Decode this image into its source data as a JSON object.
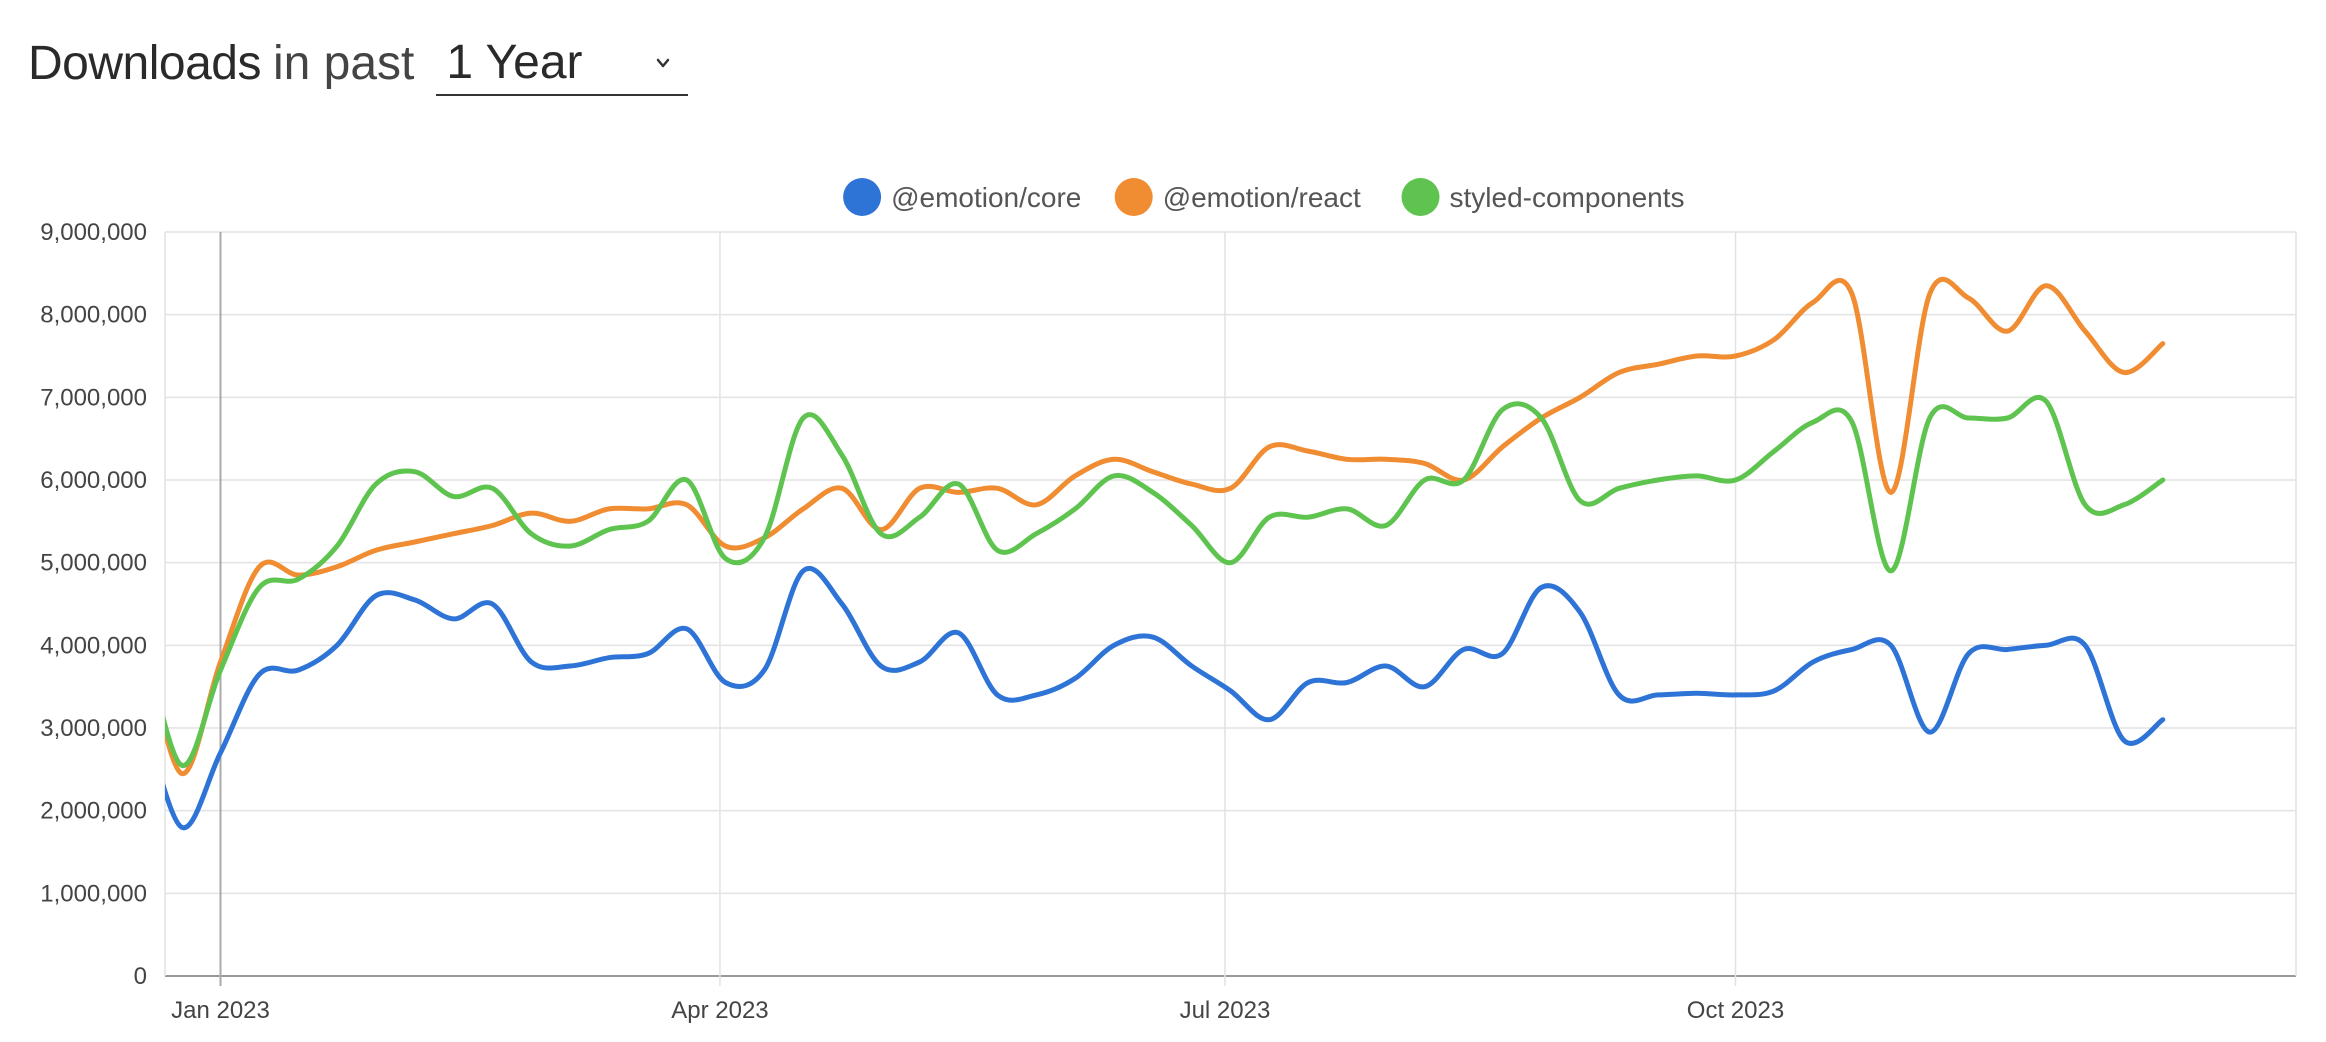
{
  "header": {
    "title": "Downloads",
    "subtitle": "in past",
    "range_value": "1 Year"
  },
  "chart_data": {
    "type": "line",
    "ylim": [
      0,
      9000000
    ],
    "y_ticks": [
      {
        "value": 0,
        "label": "0"
      },
      {
        "value": 1000000,
        "label": "1,000,000"
      },
      {
        "value": 2000000,
        "label": "2,000,000"
      },
      {
        "value": 3000000,
        "label": "3,000,000"
      },
      {
        "value": 4000000,
        "label": "4,000,000"
      },
      {
        "value": 5000000,
        "label": "5,000,000"
      },
      {
        "value": 6000000,
        "label": "6,000,000"
      },
      {
        "value": 7000000,
        "label": "7,000,000"
      },
      {
        "value": 8000000,
        "label": "8,000,000"
      },
      {
        "value": 9000000,
        "label": "9,000,000"
      }
    ],
    "x_range": [
      "2022-12-22",
      "2024-01-10"
    ],
    "x_ticks": [
      {
        "date": "2023-01-01",
        "label": "Jan 2023"
      },
      {
        "date": "2023-04-01",
        "label": "Apr 2023"
      },
      {
        "date": "2023-07-01",
        "label": "Jul 2023"
      },
      {
        "date": "2023-10-01",
        "label": "Oct 2023"
      }
    ],
    "grid": true,
    "legend_position": "top-center",
    "x": [
      "2022-12-18",
      "2022-12-25",
      "2023-01-01",
      "2023-01-08",
      "2023-01-15",
      "2023-01-22",
      "2023-01-29",
      "2023-02-05",
      "2023-02-12",
      "2023-02-19",
      "2023-02-26",
      "2023-03-05",
      "2023-03-12",
      "2023-03-19",
      "2023-03-26",
      "2023-04-02",
      "2023-04-09",
      "2023-04-16",
      "2023-04-23",
      "2023-04-30",
      "2023-05-07",
      "2023-05-14",
      "2023-05-21",
      "2023-05-28",
      "2023-06-04",
      "2023-06-11",
      "2023-06-18",
      "2023-06-25",
      "2023-07-02",
      "2023-07-09",
      "2023-07-16",
      "2023-07-23",
      "2023-07-30",
      "2023-08-06",
      "2023-08-13",
      "2023-08-20",
      "2023-08-27",
      "2023-09-03",
      "2023-09-10",
      "2023-09-17",
      "2023-09-24",
      "2023-10-01",
      "2023-10-08",
      "2023-10-15",
      "2023-10-22",
      "2023-10-29",
      "2023-11-05",
      "2023-11-12",
      "2023-11-19",
      "2023-11-26",
      "2023-12-03",
      "2023-12-10",
      "2023-12-17"
    ],
    "series": [
      {
        "name": "@emotion/core",
        "color": "#2e74d6",
        "values": [
          3200000,
          1800000,
          2700000,
          3650000,
          3700000,
          4000000,
          4600000,
          4550000,
          4320000,
          4500000,
          3800000,
          3750000,
          3850000,
          3900000,
          4200000,
          3550000,
          3700000,
          4900000,
          4500000,
          3750000,
          3800000,
          4150000,
          3400000,
          3400000,
          3600000,
          4000000,
          4100000,
          3750000,
          3450000,
          3100000,
          3550000,
          3550000,
          3750000,
          3500000,
          3950000,
          3900000,
          4700000,
          4400000,
          3400000,
          3400000,
          3420000,
          3400000,
          3450000,
          3800000,
          3950000,
          4000000,
          2950000,
          3900000,
          3950000,
          4000000,
          4000000,
          2850000,
          3100000
        ]
      },
      {
        "name": "@emotion/react",
        "color": "#f08c31",
        "values": [
          4150000,
          2450000,
          3800000,
          4950000,
          4850000,
          4950000,
          5150000,
          5250000,
          5350000,
          5450000,
          5600000,
          5500000,
          5650000,
          5650000,
          5700000,
          5200000,
          5300000,
          5650000,
          5900000,
          5400000,
          5900000,
          5850000,
          5900000,
          5700000,
          6050000,
          6250000,
          6100000,
          5950000,
          5900000,
          6400000,
          6350000,
          6250000,
          6250000,
          6200000,
          6000000,
          6400000,
          6750000,
          7000000,
          7300000,
          7400000,
          7500000,
          7500000,
          7700000,
          8150000,
          8250000,
          5850000,
          8250000,
          8200000,
          7800000,
          8350000,
          7800000,
          7300000,
          7650000
        ]
      },
      {
        "name": "styled-components",
        "color": "#5ec44f",
        "values": [
          4150000,
          2550000,
          3700000,
          4700000,
          4800000,
          5200000,
          5950000,
          6100000,
          5800000,
          5900000,
          5350000,
          5200000,
          5400000,
          5500000,
          6000000,
          5050000,
          5300000,
          6750000,
          6300000,
          5350000,
          5550000,
          5950000,
          5150000,
          5350000,
          5650000,
          6050000,
          5850000,
          5450000,
          5000000,
          5550000,
          5550000,
          5650000,
          5450000,
          6000000,
          6000000,
          6850000,
          6750000,
          5750000,
          5900000,
          6000000,
          6050000,
          6000000,
          6350000,
          6700000,
          6700000,
          4900000,
          6750000,
          6750000,
          6750000,
          6950000,
          5700000,
          5700000,
          6000000
        ]
      }
    ]
  }
}
